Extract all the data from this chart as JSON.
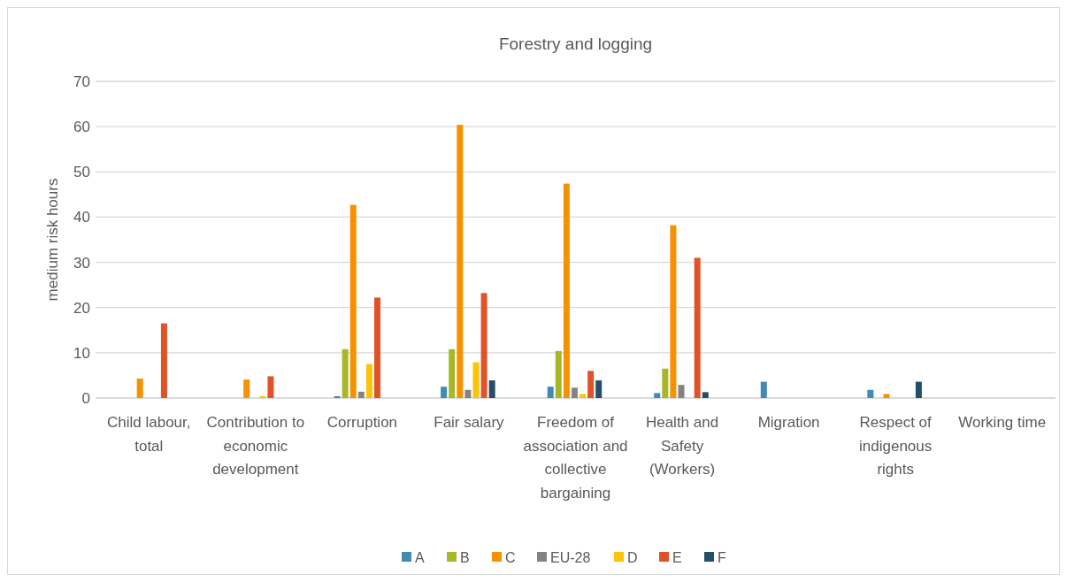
{
  "chart_data": {
    "type": "bar",
    "title": "Forestry and logging",
    "ylabel": "medium risk hours",
    "categories": [
      "Child labour, total",
      "Contribution to economic development",
      "Corruption",
      "Fair salary",
      "Freedom of association and collective bargaining",
      "Health and Safety (Workers)",
      "Migration",
      "Respect of indigenous rights",
      "Working time"
    ],
    "series": [
      {
        "name": "A",
        "color": "#418ab3",
        "values": [
          null,
          null,
          0.4,
          2.5,
          2.5,
          1.1,
          3.6,
          1.8,
          null
        ]
      },
      {
        "name": "B",
        "color": "#a6b727",
        "values": [
          null,
          null,
          10.8,
          10.8,
          10.4,
          6.5,
          null,
          null,
          null
        ]
      },
      {
        "name": "C",
        "color": "#f69200",
        "values": [
          4.3,
          4.1,
          42.7,
          60.4,
          47.4,
          38.2,
          null,
          0.9,
          null
        ]
      },
      {
        "name": "EU-28",
        "color": "#838383",
        "values": [
          null,
          null,
          1.4,
          1.8,
          2.3,
          2.9,
          null,
          null,
          null
        ]
      },
      {
        "name": "D",
        "color": "#fec306",
        "values": [
          null,
          0.4,
          7.5,
          7.9,
          0.9,
          null,
          null,
          null,
          null
        ]
      },
      {
        "name": "E",
        "color": "#df5327",
        "values": [
          16.5,
          4.8,
          22.2,
          23.2,
          6.0,
          31.0,
          null,
          null,
          null
        ]
      },
      {
        "name": "F",
        "color": "#254e69",
        "values": [
          null,
          null,
          null,
          3.9,
          3.9,
          1.3,
          null,
          3.6,
          null
        ]
      }
    ],
    "ylim": [
      0,
      70
    ],
    "yticks": [
      0,
      10,
      20,
      30,
      40,
      50,
      60,
      70
    ],
    "grid": "y",
    "legend": "bottom"
  }
}
